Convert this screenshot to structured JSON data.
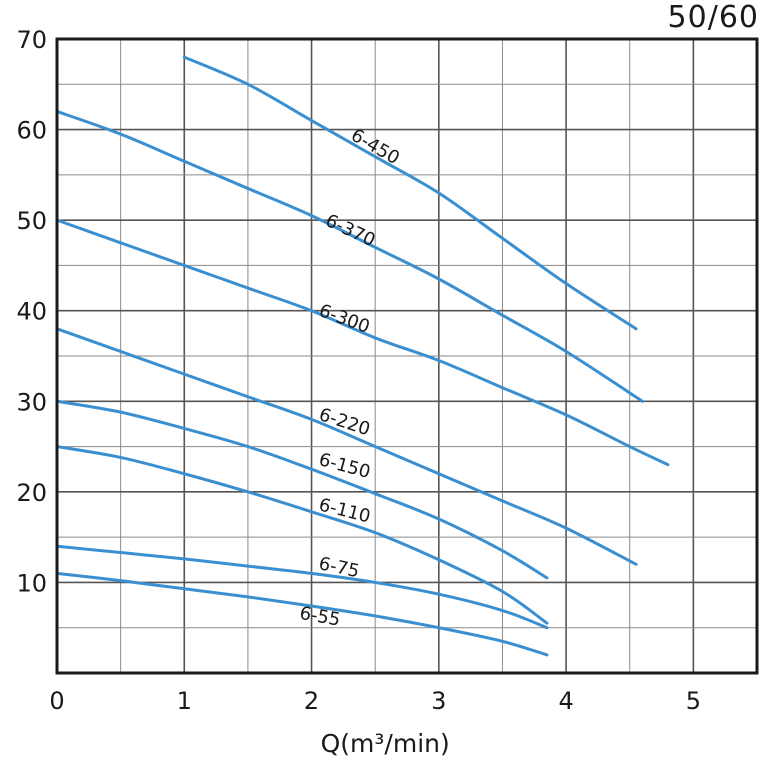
{
  "corner_label": "50/60",
  "chart_data": {
    "type": "line",
    "title": "",
    "xlabel": "Q(m³/min)",
    "ylabel": "",
    "xlim": [
      0,
      5.5
    ],
    "ylim": [
      0,
      70
    ],
    "x_ticks": [
      0,
      1,
      2,
      3,
      4,
      5
    ],
    "y_ticks": [
      10,
      20,
      30,
      40,
      50,
      60,
      70
    ],
    "grid": true,
    "line_color": "#3a8fd0",
    "series": [
      {
        "name": "6-450",
        "x": [
          1.0,
          1.5,
          2.0,
          2.5,
          3.0,
          3.5,
          4.0,
          4.55
        ],
        "y": [
          68,
          65,
          61,
          57,
          53,
          48,
          43,
          38
        ]
      },
      {
        "name": "6-370",
        "x": [
          0,
          0.5,
          1.0,
          1.5,
          2.0,
          2.5,
          3.0,
          3.5,
          4.0,
          4.6
        ],
        "y": [
          62,
          59.5,
          56.5,
          53.5,
          50.5,
          47,
          43.5,
          39.5,
          35.5,
          30
        ]
      },
      {
        "name": "6-300",
        "x": [
          0,
          0.5,
          1.0,
          1.5,
          2.0,
          2.5,
          3.0,
          3.5,
          4.0,
          4.5,
          4.8
        ],
        "y": [
          50,
          47.5,
          45,
          42.5,
          40,
          37,
          34.5,
          31.5,
          28.5,
          25,
          23
        ]
      },
      {
        "name": "6-220",
        "x": [
          0,
          0.5,
          1.0,
          1.5,
          2.0,
          2.5,
          3.0,
          3.5,
          4.0,
          4.55
        ],
        "y": [
          38,
          35.5,
          33,
          30.5,
          28,
          25,
          22,
          19,
          16,
          12
        ]
      },
      {
        "name": "6-150",
        "x": [
          0,
          0.5,
          1.0,
          1.5,
          2.0,
          2.5,
          3.0,
          3.5,
          3.85
        ],
        "y": [
          30,
          28.8,
          27,
          25,
          22.5,
          19.8,
          17,
          13.5,
          10.5
        ]
      },
      {
        "name": "6-110",
        "x": [
          0,
          0.5,
          1.0,
          1.5,
          2.0,
          2.5,
          3.0,
          3.5,
          3.85
        ],
        "y": [
          25,
          23.8,
          22,
          20,
          17.8,
          15.5,
          12.5,
          9,
          5.5
        ]
      },
      {
        "name": "6-75",
        "x": [
          0,
          0.5,
          1.0,
          1.5,
          2.0,
          2.5,
          3.0,
          3.5,
          3.85
        ],
        "y": [
          14,
          13.3,
          12.6,
          11.8,
          11,
          10,
          8.7,
          6.9,
          5
        ]
      },
      {
        "name": "6-55",
        "x": [
          0,
          0.5,
          1.0,
          1.5,
          2.0,
          2.5,
          3.0,
          3.5,
          3.85
        ],
        "y": [
          11,
          10.2,
          9.3,
          8.4,
          7.4,
          6.3,
          5,
          3.5,
          2
        ]
      }
    ],
    "labels": [
      {
        "text": "6-450",
        "x": 2.3,
        "y": 59,
        "angle": 30
      },
      {
        "text": "6-370",
        "x": 2.1,
        "y": 49.5,
        "angle": 25
      },
      {
        "text": "6-300",
        "x": 2.05,
        "y": 39.5,
        "angle": 20
      },
      {
        "text": "6-220",
        "x": 2.05,
        "y": 28,
        "angle": 18
      },
      {
        "text": "6-150",
        "x": 2.05,
        "y": 23,
        "angle": 15
      },
      {
        "text": "6-110",
        "x": 2.05,
        "y": 18,
        "angle": 14
      },
      {
        "text": "6-75",
        "x": 2.05,
        "y": 11.5,
        "angle": 12
      },
      {
        "text": "6-55",
        "x": 1.9,
        "y": 6,
        "angle": 10
      }
    ]
  }
}
